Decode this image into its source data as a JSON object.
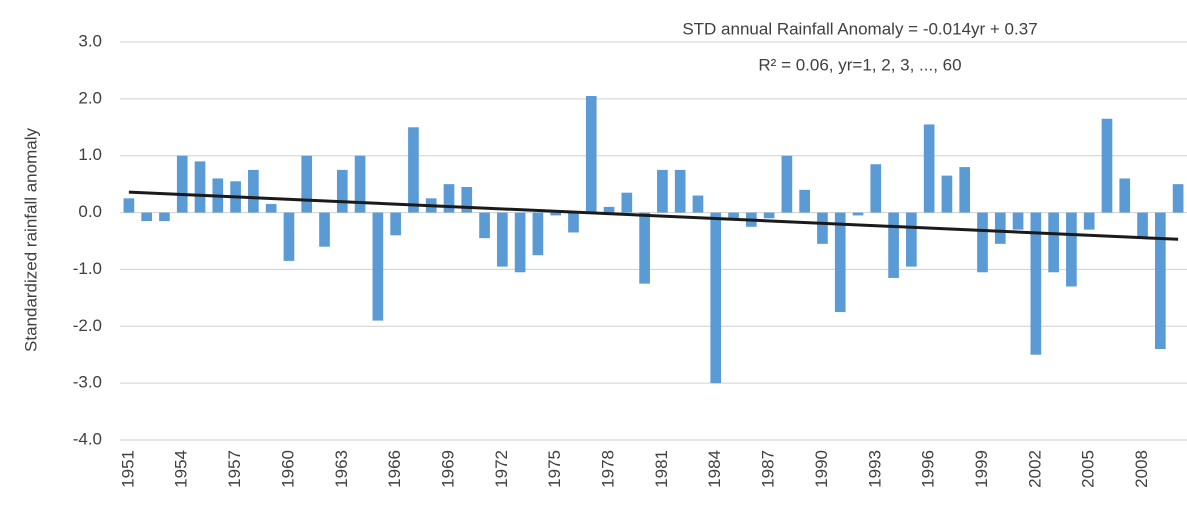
{
  "chart_data": {
    "type": "bar",
    "annotation": [
      "STD annual  Rainfall Anomaly = -0.014yr + 0.37",
      "R² = 0.06, yr=1, 2, 3, ..., 60"
    ],
    "y_label": "Standardized rainfall anomaly",
    "categories": [
      "1951",
      null,
      null,
      "1954",
      null,
      null,
      "1957",
      null,
      null,
      "1960",
      null,
      null,
      "1963",
      null,
      null,
      "1966",
      null,
      null,
      "1969",
      null,
      null,
      "1972",
      null,
      null,
      "1975",
      null,
      null,
      "1978",
      null,
      null,
      "1981",
      null,
      null,
      "1984",
      null,
      null,
      "1987",
      null,
      null,
      "1990",
      null,
      null,
      "1993",
      null,
      null,
      "1996",
      null,
      null,
      "1999",
      null,
      null,
      "2002",
      null,
      null,
      "2005",
      null,
      null,
      "2008",
      null,
      null
    ],
    "values": [
      0.25,
      -0.15,
      -0.15,
      1.0,
      0.9,
      0.6,
      0.55,
      0.75,
      0.15,
      -0.85,
      1.0,
      -0.6,
      0.75,
      1.0,
      -1.9,
      -0.4,
      1.5,
      0.25,
      0.5,
      0.45,
      -0.45,
      -0.95,
      -1.05,
      -0.75,
      -0.05,
      -0.35,
      2.05,
      0.1,
      0.35,
      -1.25,
      0.75,
      0.75,
      0.3,
      -3.0,
      -0.1,
      -0.25,
      -0.1,
      1.0,
      0.4,
      -0.55,
      -1.75,
      -0.05,
      0.85,
      -1.15,
      -0.95,
      1.55,
      0.65,
      0.8,
      -1.05,
      -0.55,
      -0.3,
      -2.5,
      -1.05,
      -1.3,
      -0.3,
      1.65,
      0.6,
      -0.45,
      -2.4,
      0.5
    ],
    "color": "#5b9bd5",
    "trend": {
      "values": [
        0.36,
        -0.47
      ],
      "color": "#1a1a1a"
    },
    "ylim": [
      -4,
      3
    ],
    "yticks": [
      {
        "value": 3,
        "label": "3.0"
      },
      {
        "value": 2,
        "label": "2.0"
      },
      {
        "value": 1,
        "label": "1.0"
      },
      {
        "value": 0,
        "label": "0.0"
      },
      {
        "value": -1,
        "label": "-1.0"
      },
      {
        "value": -2,
        "label": "-2.0"
      },
      {
        "value": -3,
        "label": "-3.0"
      },
      {
        "value": -4,
        "label": "-4.0"
      }
    ],
    "grid": true
  }
}
